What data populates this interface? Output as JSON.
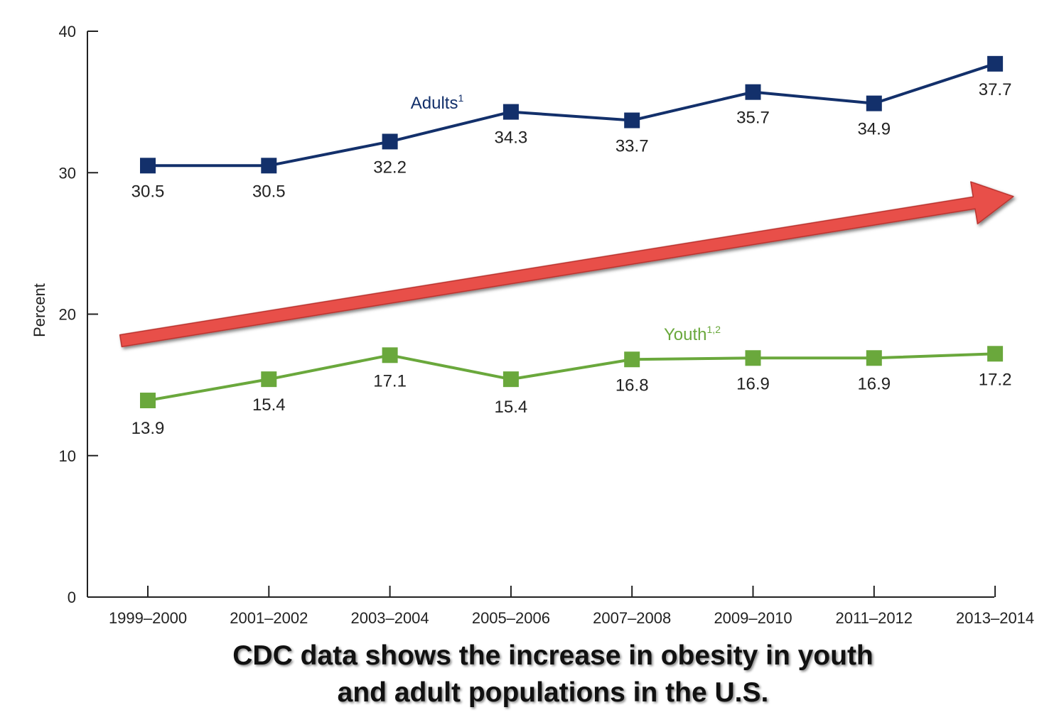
{
  "chart_data": {
    "type": "line",
    "categories": [
      "1999–2000",
      "2001–2002",
      "2003–2004",
      "2005–2006",
      "2007–2008",
      "2009–2010",
      "2011–2012",
      "2013–2014"
    ],
    "ylabel": "Percent",
    "ylim": [
      0,
      40
    ],
    "yticks": [
      0,
      10,
      20,
      30,
      40
    ],
    "grid": false,
    "series": [
      {
        "name": "Adults",
        "superscript": "1",
        "color": "#13306b",
        "values": [
          30.5,
          30.5,
          32.2,
          34.3,
          33.7,
          35.7,
          34.9,
          37.7
        ],
        "labels": [
          "30.5",
          "30.5",
          "32.2",
          "34.3",
          "33.7",
          "35.7",
          "34.9",
          "37.7"
        ]
      },
      {
        "name": "Youth",
        "superscript": "1,2",
        "color": "#6aa83c",
        "values": [
          13.9,
          15.4,
          17.1,
          15.4,
          16.8,
          16.9,
          16.9,
          17.2
        ],
        "labels": [
          "13.9",
          "15.4",
          "17.1",
          "15.4",
          "16.8",
          "16.9",
          "16.9",
          "17.2"
        ]
      }
    ],
    "annotation": {
      "shape": "trend-arrow",
      "color": "#e8504a"
    }
  },
  "caption": {
    "line1": "CDC data shows the increase in obesity in youth",
    "line2": "and adult populations in the U.S."
  }
}
